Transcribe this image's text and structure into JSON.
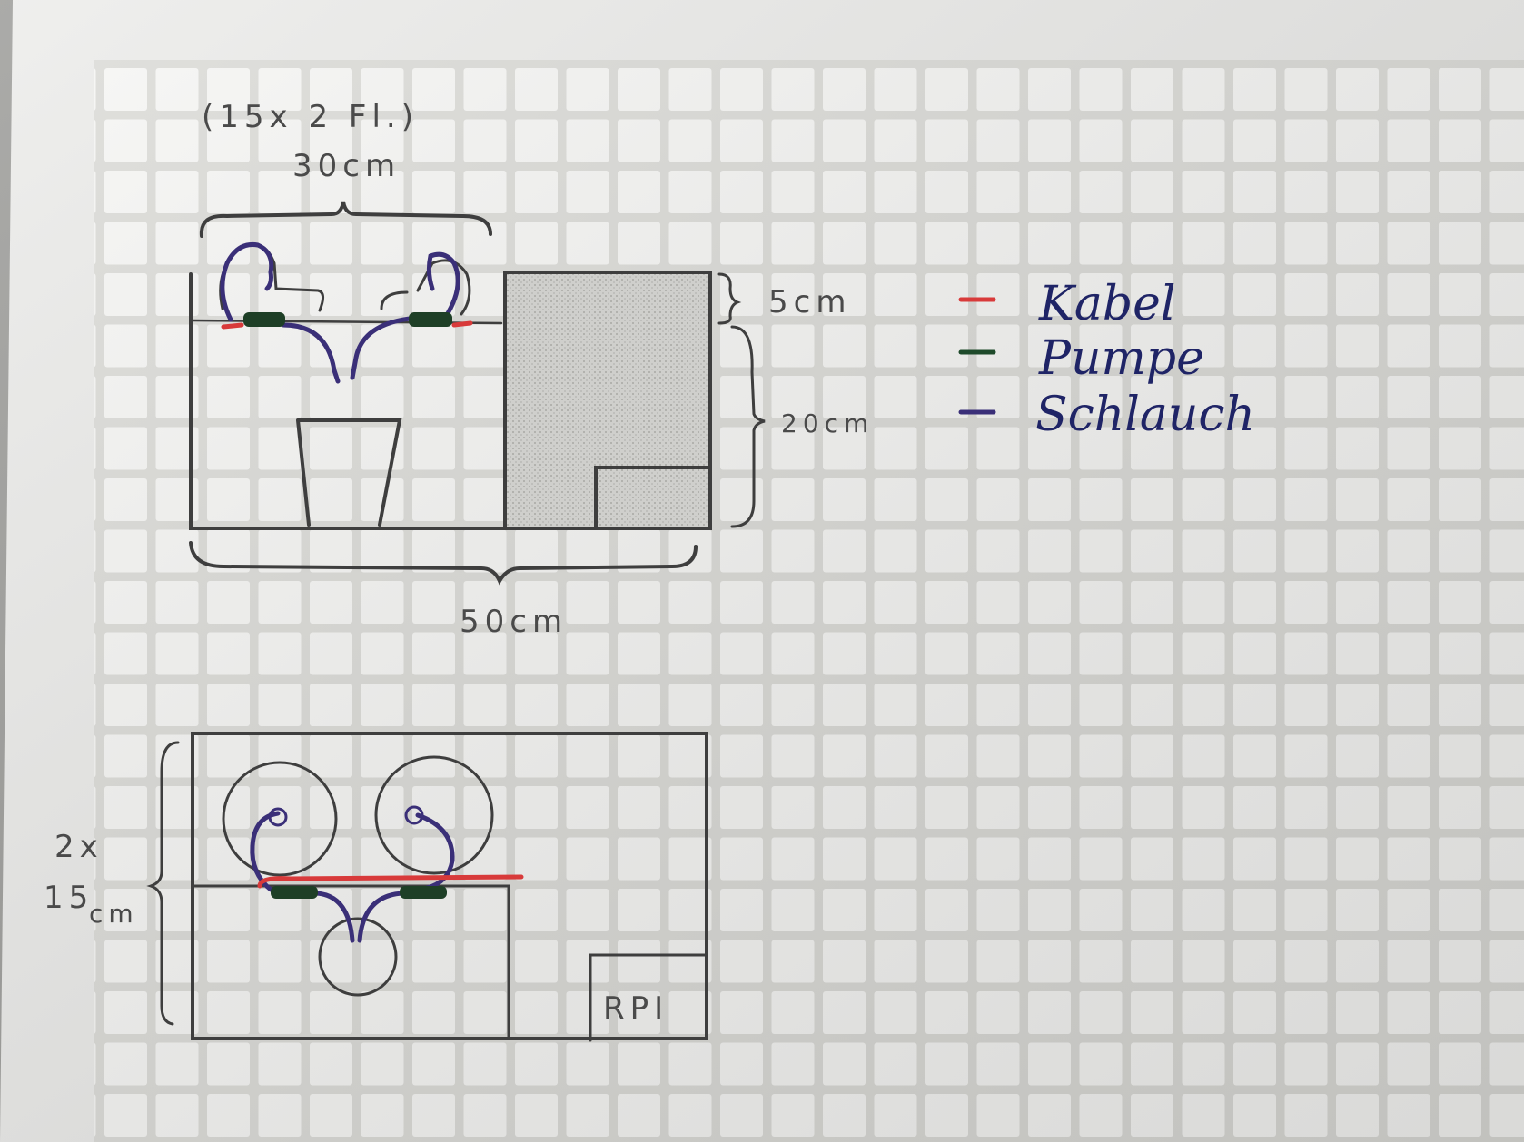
{
  "colors": {
    "paper": "#ecece9",
    "grid_cell": "#f6f6f4",
    "pencil": "#3a3a3a",
    "cable": "#d83a3a",
    "pump": "#1e4a2a",
    "hose": "#3a2f78",
    "ink": "#1f2466"
  },
  "side_view": {
    "top_bracket_label_1": "(15x 2 Fl.)",
    "top_bracket_label_2": "30cm",
    "right_label_top": "5cm",
    "right_label_main": "20cm",
    "bottom_label": "50cm"
  },
  "top_view": {
    "left_label_1": "2x",
    "left_label_2": "15",
    "left_label_3": "cm",
    "device_label": "RPI"
  },
  "legend": {
    "items": [
      {
        "label": "Kabel",
        "color": "#d83a3a"
      },
      {
        "label": "Pumpe",
        "color": "#1e4a2a"
      },
      {
        "label": "Schlauch",
        "color": "#3a2f78"
      }
    ]
  }
}
